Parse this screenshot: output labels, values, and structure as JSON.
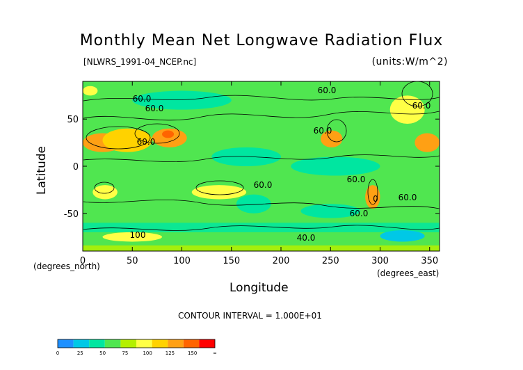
{
  "chart_data": {
    "type": "heatmap",
    "title": "Monthly Mean Net Longwave Radiation Flux",
    "subtitle_left": "[NLWRS_1991-04_NCEP.nc]",
    "subtitle_right": "(units:W/m^2)",
    "xlabel": "Longitude",
    "ylabel": "Latitude",
    "x_units": "(degrees_east)",
    "y_units": "(degrees_north)",
    "xlim": [
      0,
      360
    ],
    "ylim": [
      -90,
      90
    ],
    "x_ticks": [
      0,
      50,
      100,
      150,
      200,
      250,
      300,
      350
    ],
    "y_ticks": [
      50,
      0,
      -50
    ],
    "contour_interval_label": "CONTOUR INTERVAL = 1.000E+01",
    "contour_labels": [
      "60.0",
      "60.0",
      "60.0",
      "60.0",
      "60.0",
      "100",
      "40.0",
      "60.0",
      "60.0",
      "60.0",
      "60.0",
      "60.0",
      "0"
    ],
    "colorbar": {
      "tick_labels": [
        "0",
        "25",
        "50",
        "75",
        "100",
        "125",
        "150",
        "∞"
      ],
      "colors": [
        "#1e90ff",
        "#00c8e6",
        "#00e6a0",
        "#50e650",
        "#b4f000",
        "#ffff46",
        "#ffd200",
        "#ffa014",
        "#ff6400",
        "#ff0000"
      ]
    },
    "regions": [
      {
        "lon": [
          0,
          360
        ],
        "lat": [
          -90,
          90
        ],
        "value": 60
      },
      {
        "lon": [
          0,
          40
        ],
        "lat": [
          15,
          35
        ],
        "value": 130
      },
      {
        "lon": [
          20,
          70
        ],
        "lat": [
          15,
          40
        ],
        "value": 110
      },
      {
        "lon": [
          70,
          105
        ],
        "lat": [
          20,
          40
        ],
        "value": 120
      },
      {
        "lon": [
          80,
          92
        ],
        "lat": [
          30,
          38
        ],
        "value": 150
      },
      {
        "lon": [
          240,
          262
        ],
        "lat": [
          20,
          38
        ],
        "value": 120
      },
      {
        "lon": [
          335,
          360
        ],
        "lat": [
          15,
          35
        ],
        "value": 130
      },
      {
        "lon": [
          310,
          345
        ],
        "lat": [
          45,
          75
        ],
        "value": 100
      },
      {
        "lon": [
          0,
          15
        ],
        "lat": [
          75,
          85
        ],
        "value": 100
      },
      {
        "lon": [
          110,
          165
        ],
        "lat": [
          -35,
          -20
        ],
        "value": 95
      },
      {
        "lon": [
          10,
          35
        ],
        "lat": [
          -35,
          -20
        ],
        "value": 100
      },
      {
        "lon": [
          285,
          300
        ],
        "lat": [
          -45,
          -20
        ],
        "value": 120
      },
      {
        "lon": [
          20,
          80
        ],
        "lat": [
          -80,
          -70
        ],
        "value": 100
      },
      {
        "lon": [
          50,
          150
        ],
        "lat": [
          60,
          80
        ],
        "value": 40
      },
      {
        "lon": [
          130,
          200
        ],
        "lat": [
          0,
          20
        ],
        "value": 40
      },
      {
        "lon": [
          210,
          300
        ],
        "lat": [
          -10,
          10
        ],
        "value": 45
      },
      {
        "lon": [
          155,
          190
        ],
        "lat": [
          -50,
          -30
        ],
        "value": 40
      },
      {
        "lon": [
          220,
          280
        ],
        "lat": [
          -55,
          -40
        ],
        "value": 40
      },
      {
        "lon": [
          0,
          360
        ],
        "lat": [
          -70,
          -60
        ],
        "value": 40
      },
      {
        "lon": [
          300,
          345
        ],
        "lat": [
          -80,
          -68
        ],
        "value": 20
      },
      {
        "lon": [
          0,
          360
        ],
        "lat": [
          -90,
          -84
        ],
        "value": 80
      }
    ]
  }
}
